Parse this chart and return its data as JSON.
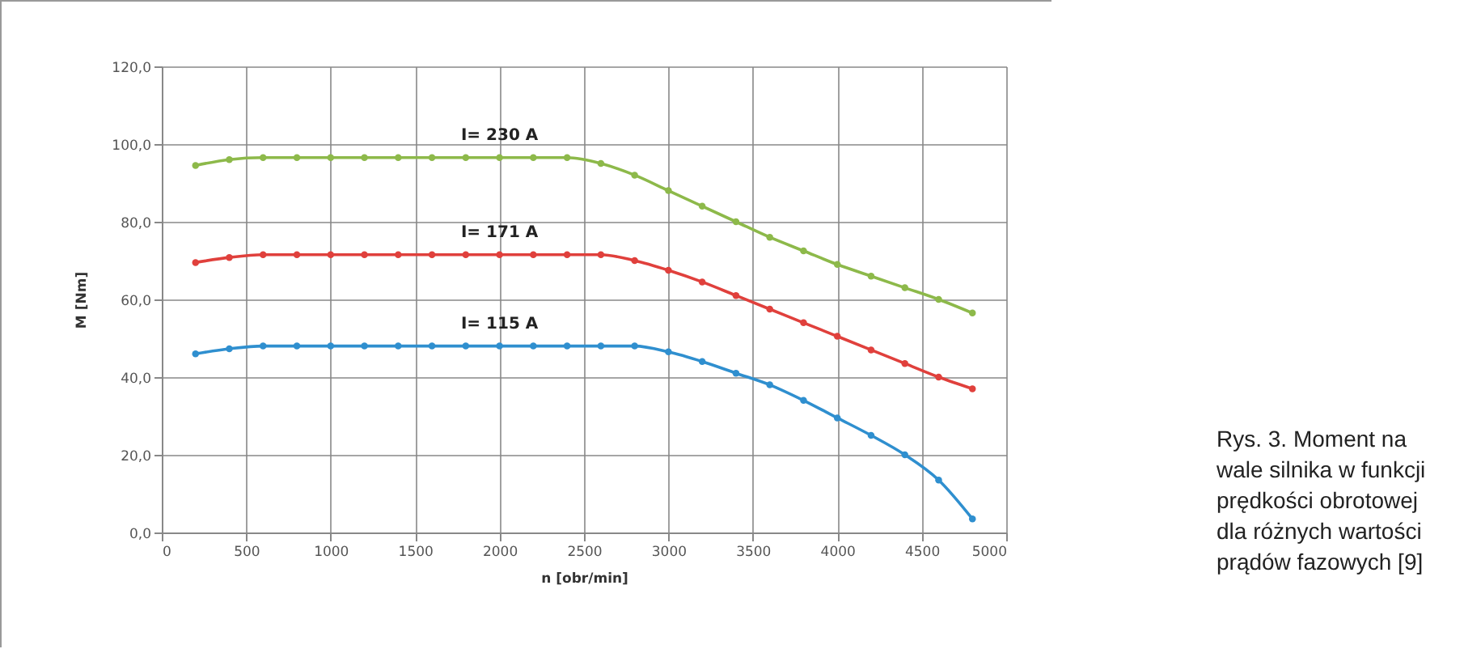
{
  "chart_data": {
    "type": "line",
    "xlabel": "n [obr/min]",
    "ylabel": "M [Nm]",
    "x": [
      200,
      400,
      600,
      800,
      1000,
      1200,
      1400,
      1600,
      1800,
      2000,
      2200,
      2400,
      2600,
      2800,
      3000,
      3200,
      3400,
      3600,
      3800,
      4000,
      4200,
      4400,
      4600,
      4800
    ],
    "series": [
      {
        "name": "I= 230 A",
        "color": "#8db94a",
        "values": [
          94.5,
          96,
          96.5,
          96.5,
          96.5,
          96.5,
          96.5,
          96.5,
          96.5,
          96.5,
          96.5,
          96.5,
          95,
          92,
          88,
          84,
          80,
          76,
          72.5,
          69,
          66,
          63,
          60,
          56.5
        ]
      },
      {
        "name": "I= 171 A",
        "color": "#e0403c",
        "values": [
          69.5,
          70.8,
          71.5,
          71.5,
          71.5,
          71.5,
          71.5,
          71.5,
          71.5,
          71.5,
          71.5,
          71.5,
          71.5,
          70,
          67.5,
          64.5,
          61,
          57.5,
          54,
          50.5,
          47,
          43.5,
          40,
          37
        ]
      },
      {
        "name": "I= 115 A",
        "color": "#2f8fcf",
        "values": [
          46,
          47.3,
          48,
          48,
          48,
          48,
          48,
          48,
          48,
          48,
          48,
          48,
          48,
          48,
          46.5,
          44,
          41,
          38,
          34,
          29.5,
          25,
          20,
          13.5,
          3.5
        ]
      }
    ],
    "xlim": [
      0,
      5000
    ],
    "xticks": [
      0,
      500,
      1000,
      1500,
      2000,
      2500,
      3000,
      3500,
      4000,
      4500,
      5000
    ],
    "ylim": [
      0,
      120
    ],
    "yticks": [
      {
        "value": 0,
        "label": "0,0"
      },
      {
        "value": 20,
        "label": "20,0"
      },
      {
        "value": 40,
        "label": "40,0"
      },
      {
        "value": 60,
        "label": "60,0"
      },
      {
        "value": 80,
        "label": "80,0"
      },
      {
        "value": 100,
        "label": "100,0"
      },
      {
        "value": 120,
        "label": "120,0"
      }
    ],
    "grid": true,
    "marker": "circle",
    "line_style": "solid",
    "annotations": [
      "Rys. 3. Moment na wale silnika w funkcji prędkości obrotowej dla różnych wartości prądów fazowych [9]"
    ]
  }
}
